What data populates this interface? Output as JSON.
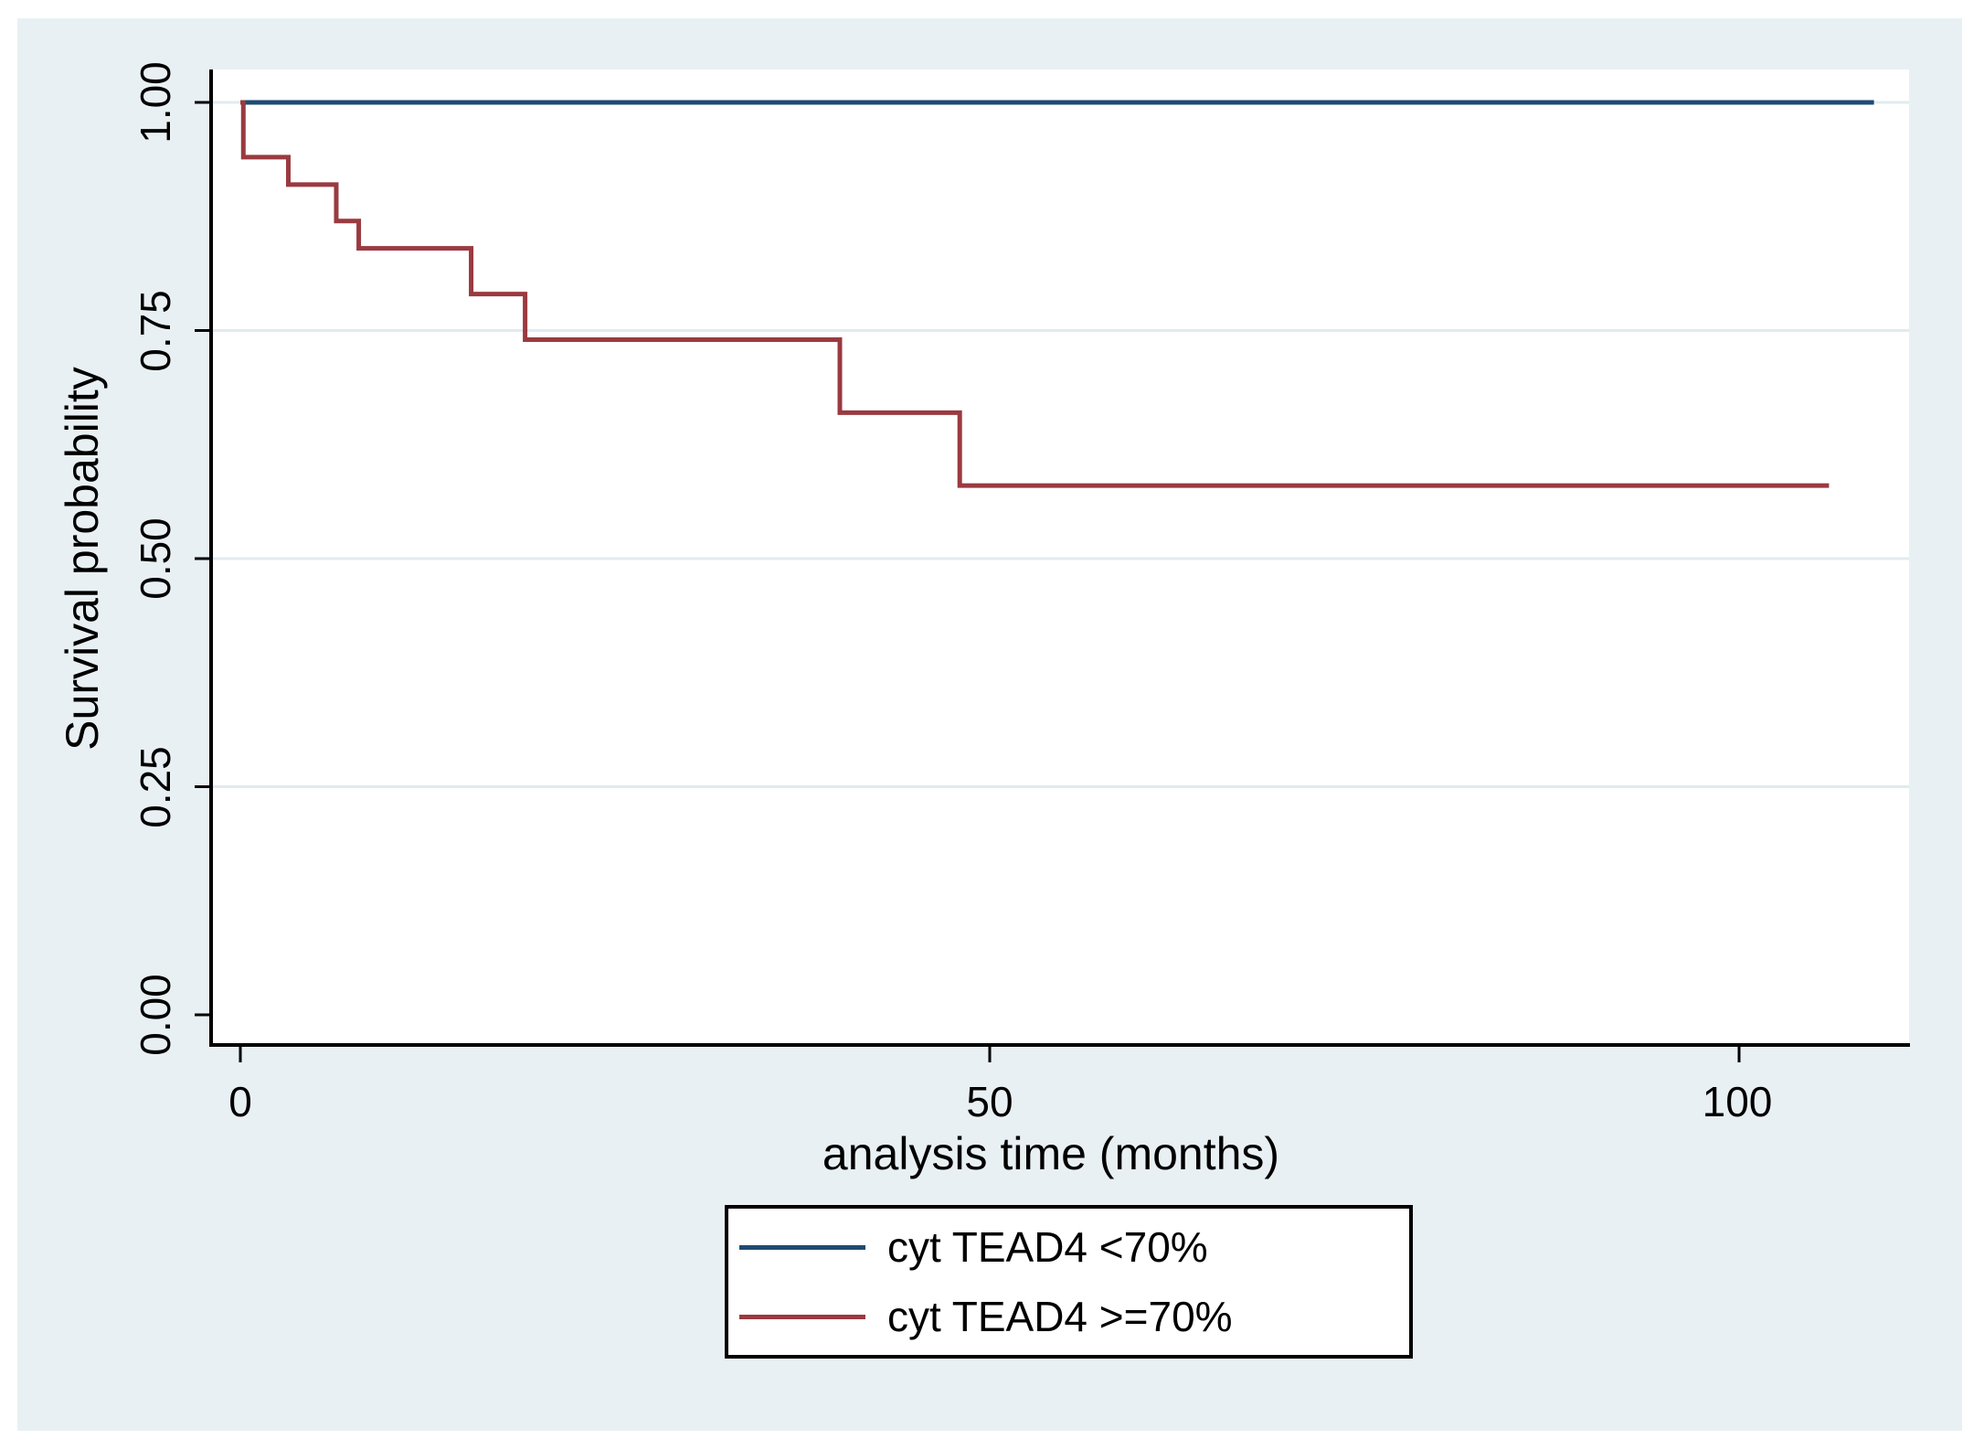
{
  "figure": {
    "background": "#ffffff",
    "canvas_background": "#e9f0f3",
    "gridline_color": "#e0ebf1",
    "axis_color": "#000000",
    "text_color": "#000000"
  },
  "chart_data": {
    "type": "line",
    "subtype": "kaplan_meier_step",
    "title": "",
    "xlabel": "analysis time (months)",
    "ylabel": "Survival probability",
    "xlim": [
      0,
      111
    ],
    "ylim": [
      0,
      1.04
    ],
    "x_ticks": [
      "0",
      "50",
      "100"
    ],
    "y_ticks": [
      "0.00",
      "0.25",
      "0.50",
      "0.75",
      "1.00"
    ],
    "grid_y_values": [
      0.25,
      0.5,
      0.75,
      1.0
    ],
    "legend": {
      "position": "bottom-center",
      "boxed": true
    },
    "series": [
      {
        "name": "cyt TEAD4 <70%",
        "color": "#1f4a73",
        "points": [
          {
            "t": 0,
            "s": 1.0
          }
        ],
        "t_end": 109
      },
      {
        "name": "cyt TEAD4 >=70%",
        "color": "#9a3a40",
        "points": [
          {
            "t": 0,
            "s": 1.0
          },
          {
            "t": 0.2,
            "s": 0.94
          },
          {
            "t": 3.2,
            "s": 0.91
          },
          {
            "t": 6.4,
            "s": 0.87
          },
          {
            "t": 7.9,
            "s": 0.84
          },
          {
            "t": 15.4,
            "s": 0.79
          },
          {
            "t": 19,
            "s": 0.74
          },
          {
            "t": 40,
            "s": 0.66
          },
          {
            "t": 48,
            "s": 0.58
          }
        ],
        "t_end": 106
      }
    ]
  }
}
